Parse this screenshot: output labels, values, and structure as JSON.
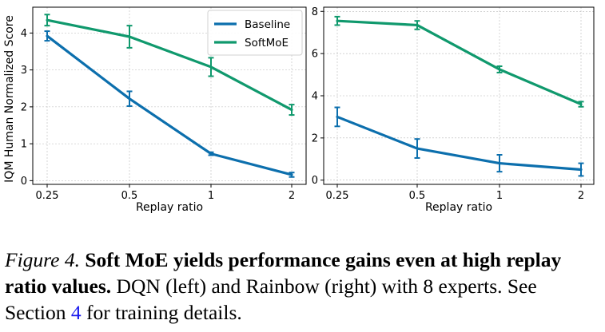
{
  "colors": {
    "baseline": "#0c6fad",
    "softmoe": "#10996d"
  },
  "chart_data": [
    {
      "type": "line",
      "categories": [
        "0.25",
        "0.5",
        "1",
        "2"
      ],
      "series": [
        {
          "name": "Baseline",
          "values": [
            3.92,
            2.22,
            0.73,
            0.16
          ],
          "err": [
            0.13,
            0.2,
            0.04,
            0.06
          ]
        },
        {
          "name": "SoftMoE",
          "values": [
            4.35,
            3.9,
            3.08,
            1.92
          ],
          "err": [
            0.15,
            0.3,
            0.25,
            0.14
          ]
        }
      ],
      "xlabel": "Replay ratio",
      "ylabel": "IQM Human Normalized Score",
      "yticks": [
        0,
        1,
        2,
        3,
        4
      ],
      "ylim": [
        -0.1,
        4.7
      ],
      "grid": true,
      "legend": "top-right"
    },
    {
      "type": "line",
      "categories": [
        "0.25",
        "0.5",
        "1",
        "2"
      ],
      "series": [
        {
          "name": "Baseline",
          "values": [
            3.0,
            1.5,
            0.8,
            0.5
          ],
          "err": [
            0.45,
            0.45,
            0.4,
            0.3
          ]
        },
        {
          "name": "SoftMoE",
          "values": [
            7.55,
            7.35,
            5.25,
            3.6
          ],
          "err": [
            0.2,
            0.2,
            0.15,
            0.12
          ]
        }
      ],
      "xlabel": "Replay ratio",
      "ylabel": "",
      "yticks": [
        0,
        2,
        4,
        6,
        8
      ],
      "ylim": [
        -0.2,
        8.2
      ],
      "grid": true,
      "legend": "none"
    }
  ],
  "caption": {
    "label": "Figure 4.",
    "bold": "Soft MoE yields performance gains even at high replay ratio values.",
    "text_before_ref": "DQN (left) and Rainbow (right) with 8 experts. See Section",
    "ref": "4",
    "text_after_ref": "for training details."
  }
}
